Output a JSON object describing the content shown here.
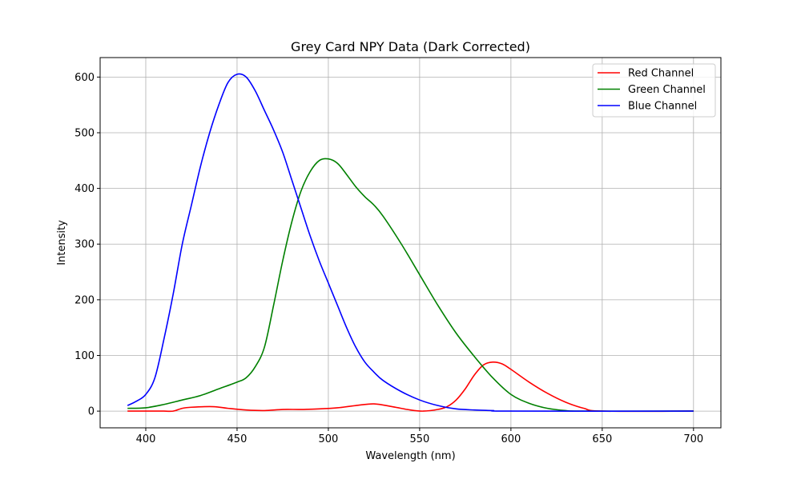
{
  "chart_data": {
    "type": "line",
    "title": "Grey Card NPY Data (Dark Corrected)",
    "xlabel": "Wavelength (nm)",
    "ylabel": "Intensity",
    "xlim": [
      375,
      715
    ],
    "ylim": [
      -30,
      635
    ],
    "xticks": [
      400,
      450,
      500,
      550,
      600,
      650,
      700
    ],
    "yticks": [
      0,
      100,
      200,
      300,
      400,
      500,
      600
    ],
    "grid": true,
    "legend_position": "top-right",
    "series": [
      {
        "name": "Red Channel",
        "color": "#ff0000",
        "x": [
          390,
          400,
          410,
          415,
          420,
          425,
          437,
          445,
          455,
          465,
          475,
          485,
          495,
          505,
          515,
          525,
          535,
          545,
          552,
          560,
          565,
          570,
          575,
          580,
          585,
          590,
          595,
          600,
          610,
          620,
          630,
          640,
          650,
          700
        ],
        "y": [
          0,
          0,
          0,
          0,
          5,
          7,
          8,
          5,
          2,
          1,
          3,
          3,
          4,
          6,
          10,
          13,
          8,
          2,
          0,
          3,
          8,
          20,
          40,
          65,
          83,
          88,
          85,
          75,
          52,
          32,
          16,
          5,
          0,
          0
        ]
      },
      {
        "name": "Green Channel",
        "color": "#008000",
        "x": [
          390,
          400,
          410,
          420,
          430,
          440,
          450,
          455,
          460,
          465,
          470,
          475,
          480,
          485,
          490,
          495,
          500,
          505,
          510,
          515,
          520,
          525,
          530,
          540,
          550,
          560,
          570,
          580,
          590,
          600,
          610,
          620,
          630,
          640,
          700
        ],
        "y": [
          5,
          6,
          12,
          20,
          28,
          40,
          52,
          60,
          80,
          115,
          190,
          270,
          340,
          395,
          430,
          450,
          453,
          445,
          425,
          403,
          385,
          370,
          350,
          300,
          245,
          190,
          140,
          98,
          60,
          30,
          14,
          5,
          1,
          0,
          0
        ]
      },
      {
        "name": "Blue Channel",
        "color": "#0000ff",
        "x": [
          390,
          395,
          400,
          405,
          410,
          415,
          420,
          425,
          430,
          435,
          440,
          445,
          450,
          455,
          460,
          465,
          470,
          475,
          480,
          485,
          490,
          495,
          500,
          505,
          510,
          515,
          520,
          525,
          530,
          540,
          550,
          560,
          570,
          580,
          590,
          600,
          700
        ],
        "y": [
          10,
          18,
          30,
          60,
          130,
          210,
          300,
          370,
          440,
          500,
          550,
          590,
          605,
          600,
          575,
          540,
          505,
          465,
          415,
          365,
          315,
          270,
          230,
          190,
          150,
          115,
          88,
          70,
          55,
          35,
          20,
          10,
          4,
          2,
          1,
          0,
          0
        ]
      }
    ]
  }
}
